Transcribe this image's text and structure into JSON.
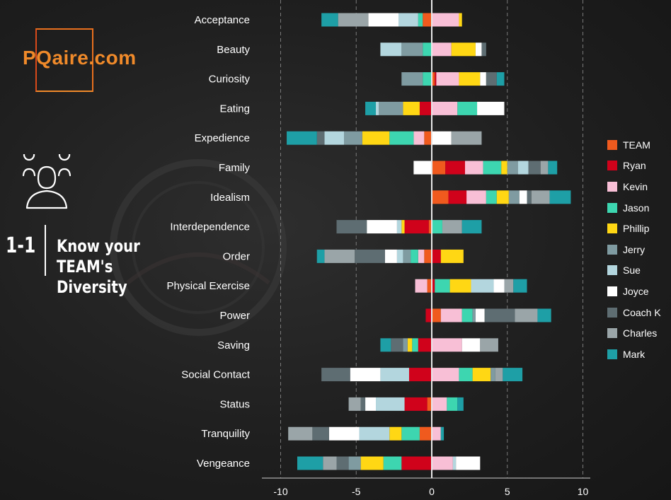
{
  "logo": {
    "text": "PQaire.com"
  },
  "section": {
    "number": "1-1",
    "title_lines": [
      "Know your",
      "TEAM's",
      "Diversity"
    ]
  },
  "chart_data": {
    "type": "bar",
    "orientation": "horizontal",
    "stacked": true,
    "categories": [
      "Acceptance",
      "Beauty",
      "Curiosity",
      "Eating",
      "Expedience",
      "Family",
      "Idealism",
      "Interdependence",
      "Order",
      "Physical Exercise",
      "Power",
      "Saving",
      "Social Contact",
      "Status",
      "Tranquility",
      "Vengeance"
    ],
    "xlim": [
      -11,
      10.5
    ],
    "xticks": [
      -10,
      -5,
      0,
      5,
      10
    ],
    "grid": "vertical dashed",
    "legend_position": "right",
    "series": [
      {
        "name": "TEAM",
        "color": "#f05a1e",
        "values": [
          -0.6,
          0.0,
          0.2,
          0.0,
          -0.5,
          0.9,
          1.1,
          -0.2,
          -0.5,
          -0.3,
          0.6,
          0.0,
          0.0,
          -0.3,
          -0.8,
          0.0
        ]
      },
      {
        "name": "Ryan",
        "color": "#d0021b",
        "values": [
          0.0,
          0.0,
          0.1,
          -0.8,
          0.0,
          1.3,
          1.2,
          -1.6,
          0.6,
          0.2,
          -0.4,
          -0.9,
          -1.5,
          -1.5,
          0.0,
          -2.0
        ]
      },
      {
        "name": "Kevin",
        "color": "#f8bfd6",
        "values": [
          1.8,
          1.3,
          1.5,
          1.7,
          -0.7,
          1.2,
          1.3,
          0.0,
          -0.4,
          -0.8,
          1.4,
          2.0,
          1.8,
          1.0,
          0.6,
          1.4
        ]
      },
      {
        "name": "Jason",
        "color": "#3dd6b0",
        "values": [
          -0.3,
          -0.6,
          -0.6,
          1.3,
          -1.6,
          1.2,
          0.7,
          0.7,
          -0.5,
          1.0,
          0.7,
          -0.4,
          0.9,
          0.7,
          -1.2,
          -1.2
        ]
      },
      {
        "name": "Phillip",
        "color": "#ffd714",
        "values": [
          0.2,
          1.6,
          1.4,
          -1.1,
          -1.8,
          0.4,
          0.8,
          -0.2,
          1.5,
          1.4,
          0.0,
          -0.3,
          1.2,
          0.0,
          -0.8,
          -1.5
        ]
      },
      {
        "name": "Jerry",
        "color": "#7f9ba1",
        "values": [
          0.0,
          -1.4,
          -1.4,
          -1.6,
          -1.2,
          0.7,
          0.7,
          0.0,
          -0.5,
          0.0,
          0.2,
          -0.3,
          0.3,
          0.0,
          0.0,
          -0.8
        ]
      },
      {
        "name": "Sue",
        "color": "#b3d6de",
        "values": [
          -1.3,
          -1.4,
          0.0,
          -0.2,
          -1.3,
          0.7,
          0.0,
          -0.3,
          -0.4,
          1.5,
          0.0,
          0.0,
          -1.9,
          -1.9,
          -2.0,
          0.2
        ]
      },
      {
        "name": "Joyce",
        "color": "#ffffff",
        "values": [
          -2.0,
          0.4,
          0.4,
          1.8,
          1.3,
          -1.2,
          0.5,
          -2.0,
          -0.8,
          0.7,
          0.6,
          1.2,
          -2.0,
          -0.7,
          -2.0,
          1.6
        ]
      },
      {
        "name": "Coach K",
        "color": "#5e6d72",
        "values": [
          0.0,
          0.3,
          0.7,
          0.0,
          -0.5,
          0.8,
          0.3,
          -2.0,
          -2.0,
          0.0,
          2.0,
          -0.8,
          -1.9,
          -0.3,
          -1.1,
          -0.8
        ]
      },
      {
        "name": "Charles",
        "color": "#9aa5a8",
        "values": [
          -2.0,
          0.0,
          0.0,
          0.0,
          2.0,
          0.5,
          1.2,
          1.3,
          -2.0,
          0.6,
          1.5,
          1.2,
          0.5,
          -0.8,
          -1.6,
          -0.9
        ]
      },
      {
        "name": "Mark",
        "color": "#1e9fa6",
        "values": [
          -1.1,
          0.0,
          0.5,
          -0.7,
          -2.0,
          0.6,
          1.4,
          1.3,
          -0.5,
          0.9,
          0.9,
          -0.7,
          1.3,
          0.4,
          0.2,
          -1.7
        ]
      }
    ]
  }
}
